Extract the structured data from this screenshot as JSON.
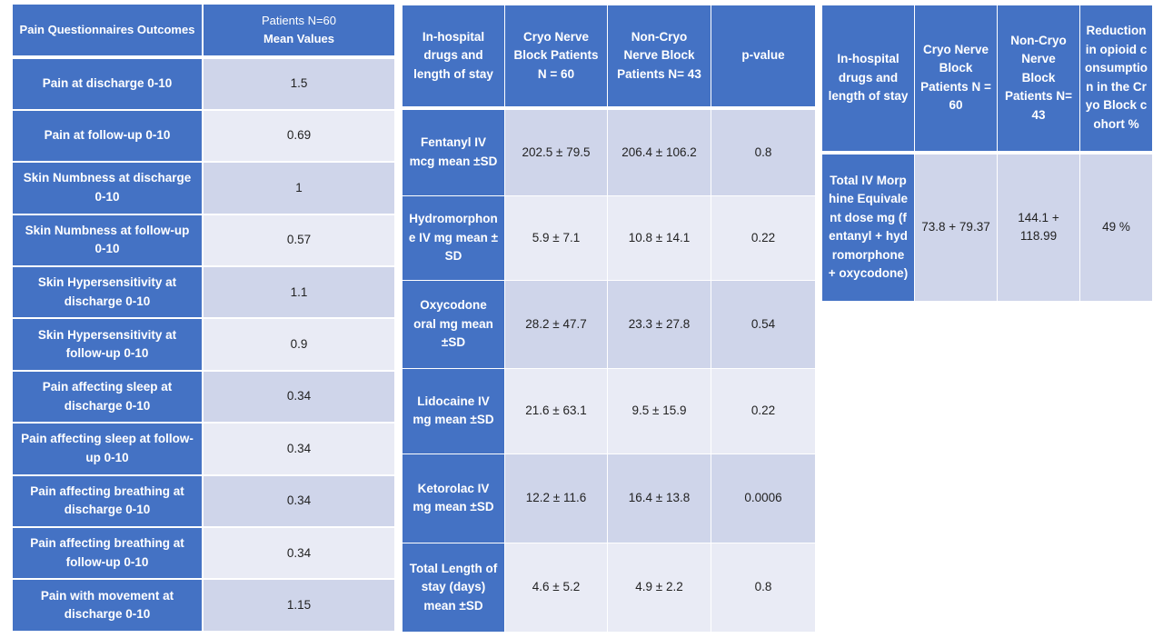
{
  "table1": {
    "headers": [
      "Pain Questionnaires Outcomes",
      "Patients N=60",
      "Mean Values"
    ],
    "rows": [
      {
        "label": "Pain at discharge 0-10",
        "value": "1.5"
      },
      {
        "label": "Pain at follow-up 0-10",
        "value": "0.69"
      },
      {
        "label": "Skin Numbness at discharge 0-10",
        "value": "1"
      },
      {
        "label": "Skin Numbness at follow-up 0-10",
        "value": "0.57"
      },
      {
        "label": "Skin Hypersensitivity at discharge 0-10",
        "value": "1.1"
      },
      {
        "label": "Skin Hypersensitivity at follow-up 0-10",
        "value": "0.9"
      },
      {
        "label": "Pain affecting sleep at discharge 0-10",
        "value": "0.34"
      },
      {
        "label": "Pain affecting sleep at follow-up 0-10",
        "value": "0.34"
      },
      {
        "label": "Pain affecting breathing at discharge 0-10",
        "value": "0.34"
      },
      {
        "label": "Pain affecting breathing at follow-up 0-10",
        "value": "0.34"
      },
      {
        "label": "Pain with movement at discharge 0-10",
        "value": "1.15"
      }
    ]
  },
  "table2": {
    "headers": [
      "In-hospital drugs and length of stay",
      "Cryo Nerve Block Patients N = 60",
      "Non-Cryo Nerve Block Patients N= 43",
      "p-value"
    ],
    "rows": [
      {
        "label": "Fentanyl IV mcg mean ±SD",
        "cryo": "202.5 ± 79.5",
        "noncryo": "206.4 ± 106.2",
        "p": "0.8"
      },
      {
        "label": "Hydromorphone IV mg mean ± SD",
        "cryo": "5.9 ± 7.1",
        "noncryo": "10.8 ± 14.1",
        "p": "0.22"
      },
      {
        "label": "Oxycodone oral mg mean ±SD",
        "cryo": "28.2 ± 47.7",
        "noncryo": "23.3 ± 27.8",
        "p": "0.54"
      },
      {
        "label": "Lidocaine IV mg mean ±SD",
        "cryo": "21.6 ± 63.1",
        "noncryo": "9.5 ± 15.9",
        "p": "0.22"
      },
      {
        "label": "Ketorolac IV mg mean ±SD",
        "cryo": "12.2 ± 11.6",
        "noncryo": "16.4 ± 13.8",
        "p": "0.0006"
      },
      {
        "label": "Total Length of stay (days) mean ±SD",
        "cryo": "4.6 ± 5.2",
        "noncryo": "4.9 ± 2.2",
        "p": "0.8"
      }
    ]
  },
  "table3": {
    "headers": [
      "In-hospital drugs and length of stay",
      "Cryo Nerve Block Patients N = 60",
      "Non-Cryo Nerve Block Patients N= 43",
      "Reduction in opioid consumption in the Cryo Block cohort %"
    ],
    "rows": [
      {
        "label": "Total IV Morphine Equivalent dose mg (fentanyl + hydromorphone + oxycodone)",
        "cryo": "73.8 + 79.37",
        "noncryo": "144.1 + 118.99",
        "reduction": "49 %"
      }
    ]
  },
  "colors": {
    "header": "#4472C4",
    "band_dark": "#CFD5EA",
    "band_light": "#E9EBF5"
  }
}
